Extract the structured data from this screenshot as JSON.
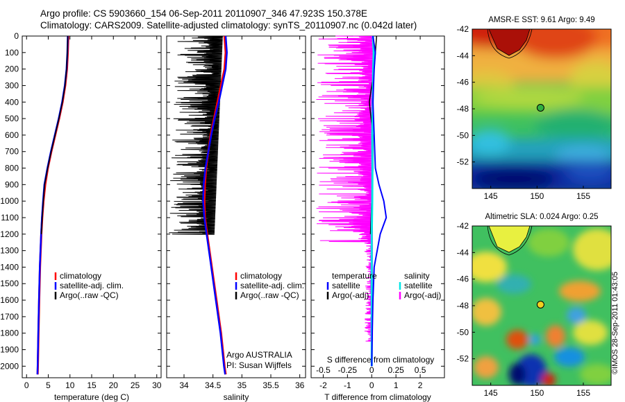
{
  "header": {
    "title_line1": "Argo profile: CS 5903660_154 06-Sep-2011 20110907_346 47.923S 150.378E",
    "title_line2": "Climatology: CARS2009. Satellite-adjusted climatology: synTS_20110907.nc (0.042d later)"
  },
  "colors": {
    "climatology": "#ff0000",
    "satellite": "#0000ff",
    "argo": "#000000",
    "satellite_s": "#00e5e5",
    "argo_s": "#ff00ff"
  },
  "credit": "©IMOS 28-Sep-2011 01:43:05",
  "chart_data": [
    {
      "id": "temperature",
      "type": "line",
      "xlabel": "temperature (deg C)",
      "ylabel": "",
      "xlim": [
        -1,
        31
      ],
      "ylim": [
        2070,
        0
      ],
      "xticks": [
        0,
        5,
        10,
        15,
        20,
        25,
        30
      ],
      "yticks": [
        0,
        100,
        200,
        300,
        400,
        500,
        600,
        700,
        800,
        900,
        1000,
        1100,
        1200,
        1300,
        1400,
        1500,
        1600,
        1700,
        1800,
        1900,
        2000
      ],
      "legend": [
        "climatology",
        "satellite-adj. clim.",
        "Argo(..raw -QC)"
      ],
      "series": [
        {
          "name": "climatology",
          "color": "#ff0000",
          "depth": [
            0,
            100,
            200,
            300,
            400,
            500,
            600,
            700,
            800,
            900,
            1000,
            1100,
            1200,
            1400,
            1600,
            1800,
            2000,
            2050
          ],
          "values": [
            9.6,
            9.5,
            9.3,
            8.9,
            8.3,
            7.5,
            6.6,
            5.7,
            4.9,
            4.3,
            3.9,
            3.6,
            3.4,
            3.1,
            2.9,
            2.75,
            2.6,
            2.55
          ]
        },
        {
          "name": "satellite-adj. clim.",
          "color": "#0000ff",
          "depth": [
            0,
            100,
            200,
            300,
            400,
            500,
            600,
            700,
            800,
            900,
            1000,
            1100,
            1200,
            1400,
            1600,
            1800,
            2000,
            2050
          ],
          "values": [
            9.5,
            9.4,
            9.2,
            8.8,
            8.2,
            7.4,
            6.5,
            5.6,
            4.8,
            4.1,
            3.8,
            3.55,
            3.35,
            3.05,
            2.85,
            2.7,
            2.55,
            2.5
          ]
        },
        {
          "name": "Argo(..raw -QC)",
          "color": "#000000",
          "depth": [
            0,
            100,
            200,
            300,
            400,
            500,
            600,
            700,
            800,
            900,
            1000,
            1100,
            1200
          ],
          "values": [
            9.5,
            9.4,
            9.2,
            8.85,
            8.25,
            7.45,
            6.55,
            5.65,
            4.85,
            4.15,
            3.85,
            3.6,
            3.4
          ]
        }
      ]
    },
    {
      "id": "salinity",
      "type": "line",
      "xlabel": "salinity",
      "xlim": [
        33.7,
        36.1
      ],
      "ylim": [
        2070,
        0
      ],
      "xticks": [
        34,
        34.5,
        35,
        35.5,
        36
      ],
      "legend": [
        "climatology",
        "satellite-adj. clim.",
        "Argo(..raw -QC)"
      ],
      "caption_line1": "Argo AUSTRALIA",
      "caption_line2": "PI: Susan Wijffels",
      "series": [
        {
          "name": "climatology",
          "color": "#ff0000",
          "depth": [
            0,
            100,
            200,
            300,
            400,
            500,
            600,
            700,
            800,
            900,
            1000,
            1100,
            1200,
            1400,
            1600,
            1800,
            2000,
            2050
          ],
          "values": [
            34.7,
            34.72,
            34.7,
            34.64,
            34.58,
            34.52,
            34.46,
            34.42,
            34.38,
            34.36,
            34.35,
            34.36,
            34.4,
            34.48,
            34.56,
            34.64,
            34.7,
            34.72
          ]
        },
        {
          "name": "satellite-adj. clim.",
          "color": "#0000ff",
          "depth": [
            0,
            100,
            200,
            300,
            400,
            500,
            600,
            700,
            800,
            900,
            1000,
            1100,
            1200,
            1400,
            1600,
            1800,
            2000,
            2050
          ],
          "values": [
            34.72,
            34.74,
            34.72,
            34.66,
            34.6,
            34.53,
            34.47,
            34.42,
            34.37,
            34.34,
            34.33,
            34.35,
            34.39,
            34.47,
            34.55,
            34.63,
            34.69,
            34.71
          ]
        },
        {
          "name": "Argo(..raw -QC)",
          "color": "#000000",
          "depth": [
            0,
            100,
            200,
            300,
            400,
            500,
            600,
            700,
            800,
            900,
            1000,
            1100,
            1200,
            1800
          ],
          "values": [
            34.6,
            34.55,
            34.5,
            34.55,
            34.4,
            34.45,
            34.35,
            34.4,
            34.3,
            34.35,
            34.3,
            34.25,
            34.2,
            34.58
          ]
        }
      ]
    },
    {
      "id": "difference",
      "type": "line",
      "xlabel": "T difference from climatology",
      "xlabel_top": "S difference from climatology",
      "xlim": [
        -2.5,
        3
      ],
      "ylim": [
        2070,
        0
      ],
      "xticks_T": [
        -2,
        -1,
        0,
        1,
        2
      ],
      "xticks_S_labels": [
        "-0.5",
        "-0.25",
        "0",
        "0.25",
        "0.5"
      ],
      "legend_temperature": [
        "temperature",
        "satellite",
        "Argo(-adj)"
      ],
      "legend_salinity": [
        "salinity",
        "satellite",
        "Argo(-adj)"
      ],
      "series": [
        {
          "name": "temperature satellite",
          "color": "#0000ff",
          "depth": [
            0,
            100,
            200,
            400,
            600,
            800,
            900,
            1000,
            1100,
            1200,
            1400,
            1600,
            1800,
            2000
          ],
          "values": [
            0.05,
            0.15,
            0.1,
            0.05,
            0.1,
            0.15,
            0.3,
            0.5,
            0.6,
            0.35,
            0.1,
            0.05,
            0.02,
            0.0
          ]
        },
        {
          "name": "temperature Argo(-adj)",
          "color": "#000000",
          "depth": [
            0,
            200,
            400,
            600,
            800,
            1000,
            1200
          ],
          "values": [
            0.2,
            0.1,
            -0.1,
            0.05,
            0.05,
            0.0,
            -0.05
          ]
        },
        {
          "name": "salinity satellite",
          "color": "#00e5e5",
          "depth": [
            0,
            100,
            200,
            400,
            600,
            800,
            1000,
            1200,
            1600,
            2000
          ],
          "values": [
            0.05,
            0.08,
            0.06,
            0.04,
            0.02,
            0.03,
            0.02,
            0.0,
            0.0,
            0.0
          ]
        },
        {
          "name": "salinity Argo(-adj)",
          "color": "#ff00ff",
          "depth": [
            0,
            100,
            200,
            300,
            400,
            500,
            600,
            700,
            800,
            900,
            1000,
            1100,
            1200,
            1800
          ],
          "values": [
            -0.5,
            -0.4,
            -0.35,
            -0.45,
            -0.3,
            -0.4,
            -0.35,
            -0.2,
            -0.3,
            -0.25,
            -0.2,
            -0.35,
            -0.45,
            0.0
          ]
        }
      ]
    },
    {
      "id": "sst-map",
      "type": "heatmap",
      "title": "AMSR-E SST: 9.61  Argo: 9.49",
      "xlim": [
        143,
        158
      ],
      "ylim": [
        -54,
        -42
      ],
      "xticks": [
        145,
        150,
        155
      ],
      "yticks": [
        -42,
        -44,
        -46,
        -48,
        -50,
        -52
      ],
      "marker": {
        "lon": 150.378,
        "lat": -47.923
      }
    },
    {
      "id": "sla-map",
      "type": "heatmap",
      "title": "Altimetric SLA: 0.024  Argo: 0.25",
      "xlim": [
        143,
        158
      ],
      "ylim": [
        -54,
        -42
      ],
      "xticks": [
        145,
        150,
        155
      ],
      "yticks": [
        -42,
        -44,
        -46,
        -48,
        -50,
        -52
      ],
      "marker": {
        "lon": 150.378,
        "lat": -47.923
      }
    }
  ]
}
